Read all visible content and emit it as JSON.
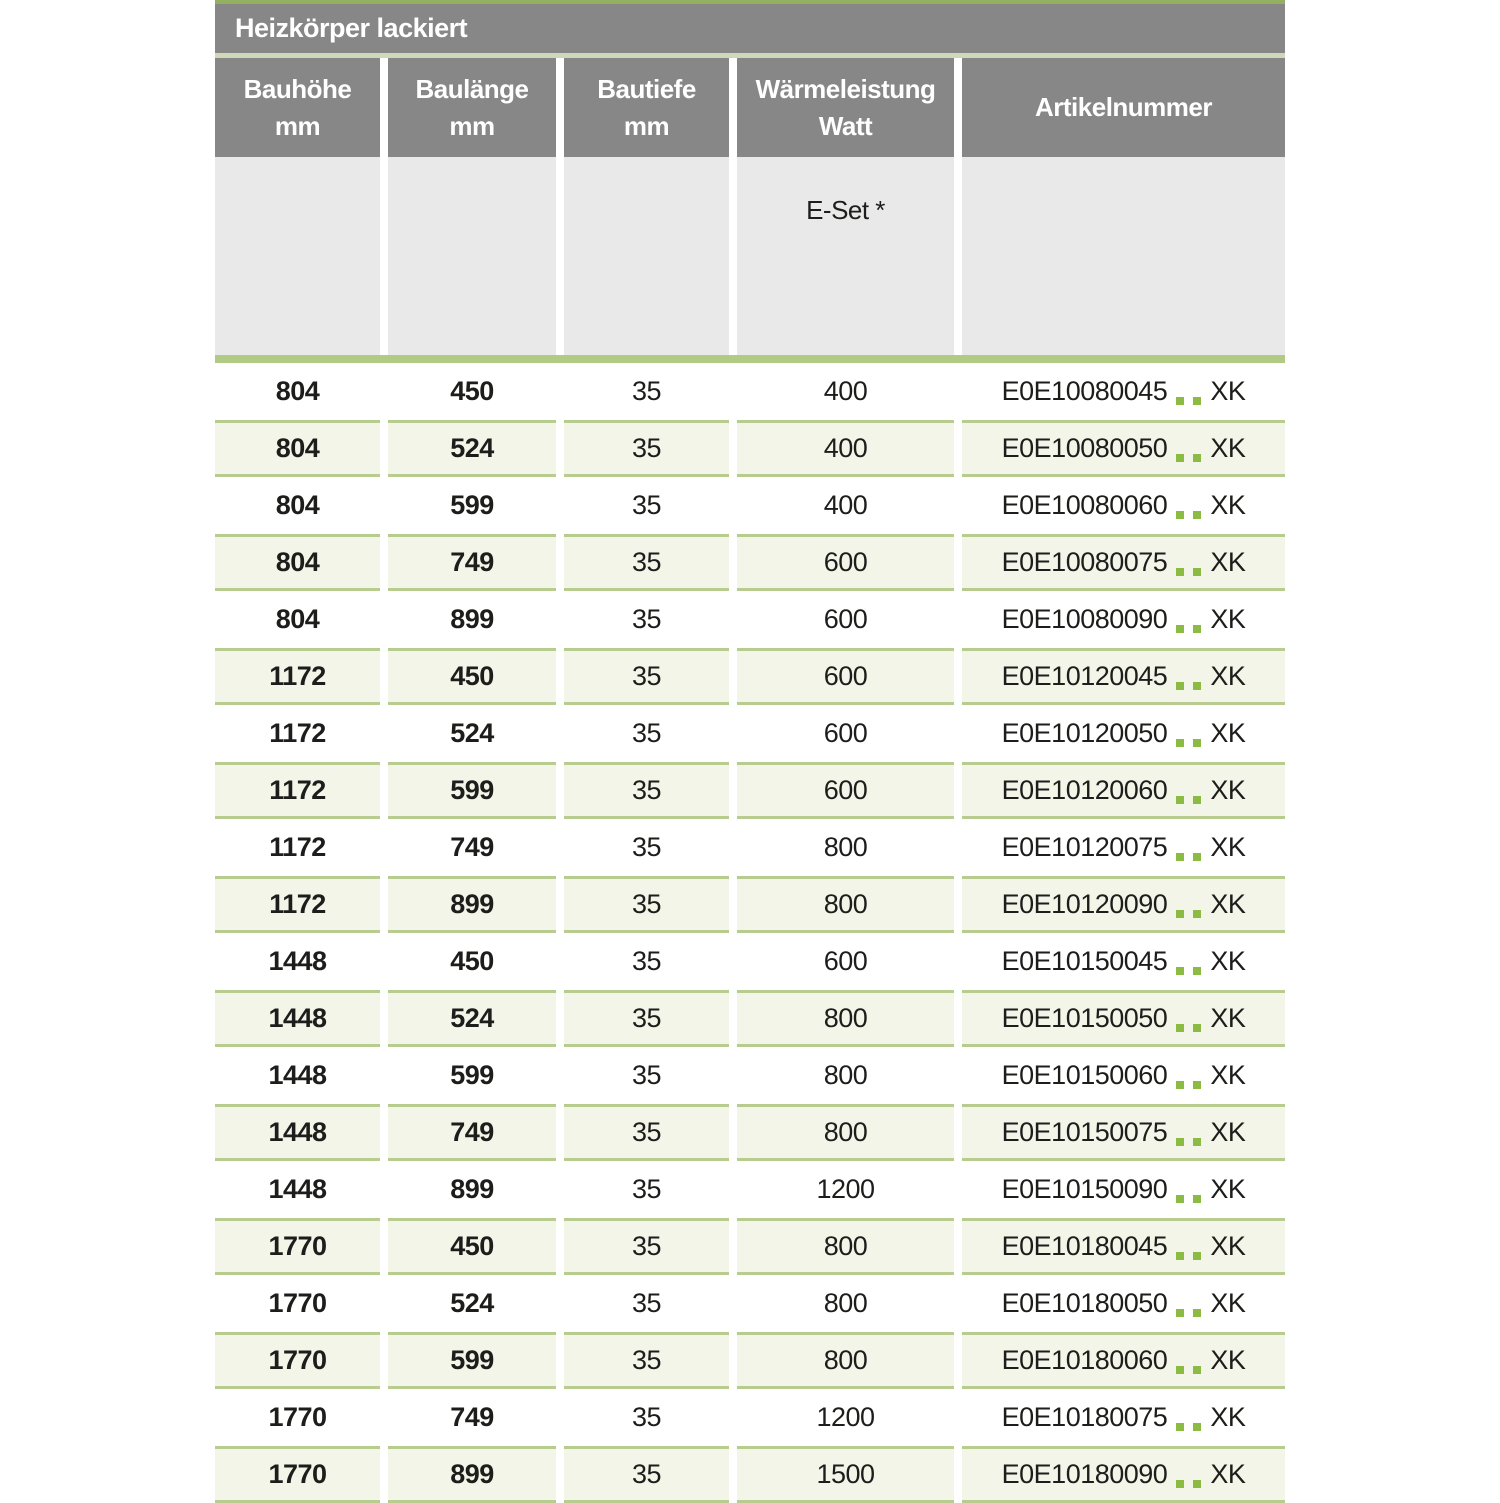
{
  "title": "Heizkörper lackiert",
  "header": {
    "columns": [
      {
        "line1": "Bauhöhe",
        "line2": "mm"
      },
      {
        "line1": "Baulänge",
        "line2": "mm"
      },
      {
        "line1": "Bautiefe",
        "line2": "mm"
      },
      {
        "line1": "Wärmeleistung",
        "line2": "Watt"
      },
      {
        "line1": "Artikelnummer",
        "line2": ""
      }
    ]
  },
  "subheader": {
    "e_set_label": "E-Set *"
  },
  "colors": {
    "header_gray": "#878787",
    "subheader_gray": "#e9e9e9",
    "accent_green_bar": "#b1cb85",
    "top_strip_green": "#93b060",
    "striped_row_bg": "#f2f5e8",
    "striped_row_border": "#b8cc90",
    "placeholder_dot_green": "#8cbb43",
    "text": "#1d1d1b"
  },
  "chart_data": {
    "type": "table",
    "title": "Heizkörper lackiert",
    "columns": [
      "Bauhöhe mm",
      "Baulänge mm",
      "Bautiefe mm",
      "Wärmeleistung Watt (E-Set *)",
      "Artikelnummer"
    ]
  },
  "rows": [
    {
      "bauhoehe": "804",
      "baulaenge": "450",
      "bautiefe": "35",
      "watt": "400",
      "artikel_prefix": "E0E10080045",
      "artikel_suffix": "XK"
    },
    {
      "bauhoehe": "804",
      "baulaenge": "524",
      "bautiefe": "35",
      "watt": "400",
      "artikel_prefix": "E0E10080050",
      "artikel_suffix": "XK"
    },
    {
      "bauhoehe": "804",
      "baulaenge": "599",
      "bautiefe": "35",
      "watt": "400",
      "artikel_prefix": "E0E10080060",
      "artikel_suffix": "XK"
    },
    {
      "bauhoehe": "804",
      "baulaenge": "749",
      "bautiefe": "35",
      "watt": "600",
      "artikel_prefix": "E0E10080075",
      "artikel_suffix": "XK"
    },
    {
      "bauhoehe": "804",
      "baulaenge": "899",
      "bautiefe": "35",
      "watt": "600",
      "artikel_prefix": "E0E10080090",
      "artikel_suffix": "XK"
    },
    {
      "bauhoehe": "1172",
      "baulaenge": "450",
      "bautiefe": "35",
      "watt": "600",
      "artikel_prefix": "E0E10120045",
      "artikel_suffix": "XK"
    },
    {
      "bauhoehe": "1172",
      "baulaenge": "524",
      "bautiefe": "35",
      "watt": "600",
      "artikel_prefix": "E0E10120050",
      "artikel_suffix": "XK"
    },
    {
      "bauhoehe": "1172",
      "baulaenge": "599",
      "bautiefe": "35",
      "watt": "600",
      "artikel_prefix": "E0E10120060",
      "artikel_suffix": "XK"
    },
    {
      "bauhoehe": "1172",
      "baulaenge": "749",
      "bautiefe": "35",
      "watt": "800",
      "artikel_prefix": "E0E10120075",
      "artikel_suffix": "XK"
    },
    {
      "bauhoehe": "1172",
      "baulaenge": "899",
      "bautiefe": "35",
      "watt": "800",
      "artikel_prefix": "E0E10120090",
      "artikel_suffix": "XK"
    },
    {
      "bauhoehe": "1448",
      "baulaenge": "450",
      "bautiefe": "35",
      "watt": "600",
      "artikel_prefix": "E0E10150045",
      "artikel_suffix": "XK"
    },
    {
      "bauhoehe": "1448",
      "baulaenge": "524",
      "bautiefe": "35",
      "watt": "800",
      "artikel_prefix": "E0E10150050",
      "artikel_suffix": "XK"
    },
    {
      "bauhoehe": "1448",
      "baulaenge": "599",
      "bautiefe": "35",
      "watt": "800",
      "artikel_prefix": "E0E10150060",
      "artikel_suffix": "XK"
    },
    {
      "bauhoehe": "1448",
      "baulaenge": "749",
      "bautiefe": "35",
      "watt": "800",
      "artikel_prefix": "E0E10150075",
      "artikel_suffix": "XK"
    },
    {
      "bauhoehe": "1448",
      "baulaenge": "899",
      "bautiefe": "35",
      "watt": "1200",
      "artikel_prefix": "E0E10150090",
      "artikel_suffix": "XK"
    },
    {
      "bauhoehe": "1770",
      "baulaenge": "450",
      "bautiefe": "35",
      "watt": "800",
      "artikel_prefix": "E0E10180045",
      "artikel_suffix": "XK"
    },
    {
      "bauhoehe": "1770",
      "baulaenge": "524",
      "bautiefe": "35",
      "watt": "800",
      "artikel_prefix": "E0E10180050",
      "artikel_suffix": "XK"
    },
    {
      "bauhoehe": "1770",
      "baulaenge": "599",
      "bautiefe": "35",
      "watt": "800",
      "artikel_prefix": "E0E10180060",
      "artikel_suffix": "XK"
    },
    {
      "bauhoehe": "1770",
      "baulaenge": "749",
      "bautiefe": "35",
      "watt": "1200",
      "artikel_prefix": "E0E10180075",
      "artikel_suffix": "XK"
    },
    {
      "bauhoehe": "1770",
      "baulaenge": "899",
      "bautiefe": "35",
      "watt": "1500",
      "artikel_prefix": "E0E10180090",
      "artikel_suffix": "XK"
    }
  ]
}
